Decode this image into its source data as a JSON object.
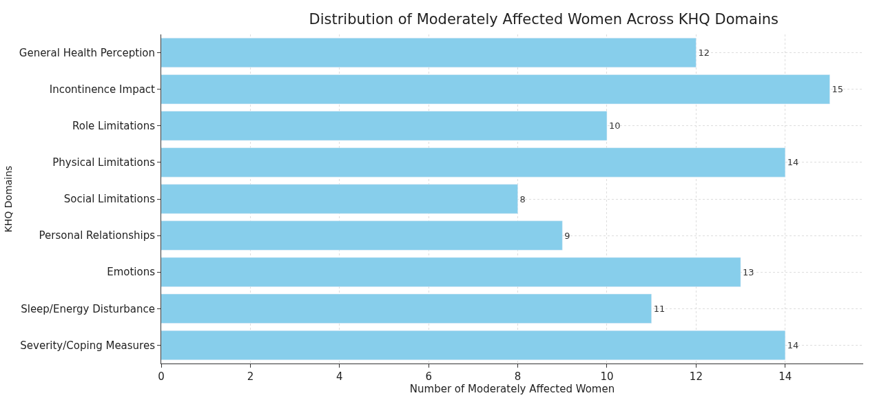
{
  "chart_data": {
    "type": "bar",
    "orientation": "horizontal",
    "title": "Distribution of Moderately Affected Women Across KHQ Domains",
    "xlabel": "Number of Moderately Affected Women",
    "ylabel": "KHQ Domains",
    "categories": [
      "General Health Perception",
      "Incontinence Impact",
      "Role Limitations",
      "Physical Limitations",
      "Social Limitations",
      "Personal Relationships",
      "Emotions",
      "Sleep/Energy Disturbance",
      "Severity/Coping Measures"
    ],
    "values": [
      12,
      15,
      10,
      14,
      8,
      9,
      13,
      11,
      14
    ],
    "color": "#87ceeb",
    "xlim": [
      0,
      15.75
    ],
    "xticks": [
      0,
      2,
      4,
      6,
      8,
      10,
      12,
      14
    ],
    "grid": true,
    "data_labels": true,
    "legend": false
  }
}
